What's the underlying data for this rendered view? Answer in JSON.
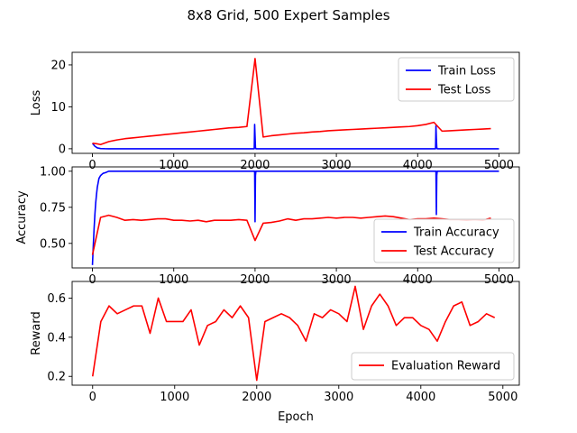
{
  "figure": {
    "title": "8x8 Grid, 500 Expert Samples"
  },
  "chart_data": [
    {
      "type": "line",
      "ylabel": "Loss",
      "xlabel": "",
      "xlim": [
        -250,
        5250
      ],
      "ylim": [
        -1.1,
        23
      ],
      "xticks": [
        0,
        1000,
        2000,
        3000,
        4000,
        5000
      ],
      "yticks": [
        0,
        10,
        20
      ],
      "legend_position": "top-right",
      "series": [
        {
          "name": "Train Loss",
          "color": "#0000ff",
          "x": [
            0,
            30,
            60,
            100,
            150,
            200,
            500,
            1000,
            1500,
            1990,
            1995,
            2000,
            2005,
            2010,
            2500,
            3000,
            3500,
            4000,
            4220,
            4225,
            4230,
            4235,
            4240,
            4500,
            5000
          ],
          "y": [
            1.3,
            0.6,
            0.2,
            0.05,
            0.01,
            0.0,
            0.0,
            0.0,
            0.0,
            0.0,
            5.8,
            3.0,
            0.3,
            0.0,
            0.0,
            0.0,
            0.0,
            0.0,
            0.0,
            5.5,
            2.5,
            0.3,
            0.0,
            0.0,
            0.0
          ]
        },
        {
          "name": "Test Loss",
          "color": "#ff0000",
          "x": [
            0,
            50,
            100,
            200,
            300,
            400,
            500,
            600,
            700,
            800,
            900,
            1000,
            1100,
            1200,
            1300,
            1400,
            1500,
            1600,
            1700,
            1800,
            1900,
            2000,
            2100,
            2200,
            2300,
            2400,
            2500,
            2600,
            2700,
            2800,
            2900,
            3000,
            3100,
            3200,
            3300,
            3400,
            3500,
            3600,
            3700,
            3800,
            3900,
            4000,
            4100,
            4200,
            4300,
            4400,
            4500,
            4600,
            4700,
            4800,
            4900
          ],
          "y": [
            1.3,
            1.2,
            1.0,
            1.7,
            2.1,
            2.4,
            2.6,
            2.8,
            3.0,
            3.2,
            3.4,
            3.6,
            3.8,
            4.0,
            4.2,
            4.4,
            4.6,
            4.8,
            5.0,
            5.1,
            5.3,
            21.5,
            2.8,
            3.1,
            3.3,
            3.5,
            3.7,
            3.8,
            4.0,
            4.1,
            4.3,
            4.4,
            4.5,
            4.6,
            4.7,
            4.8,
            4.9,
            5.0,
            5.1,
            5.2,
            5.3,
            5.5,
            5.8,
            6.3,
            4.2,
            4.3,
            4.4,
            4.5,
            4.6,
            4.7,
            4.8
          ]
        }
      ]
    },
    {
      "type": "line",
      "ylabel": "Accuracy",
      "xlabel": "",
      "xlim": [
        -250,
        5250
      ],
      "ylim": [
        0.33,
        1.03
      ],
      "xticks": [
        0,
        1000,
        2000,
        3000,
        4000,
        5000
      ],
      "yticks": [
        0.5,
        0.75,
        1.0
      ],
      "ytick_labels": [
        "0.50",
        "0.75",
        "1.00"
      ],
      "legend_position": "bottom-right",
      "series": [
        {
          "name": "Train Accuracy",
          "color": "#0000ff",
          "x": [
            0,
            10,
            20,
            30,
            40,
            50,
            60,
            70,
            80,
            100,
            130,
            160,
            200,
            300,
            1000,
            1995,
            2000,
            2005,
            2010,
            3000,
            4225,
            4230,
            4235,
            4240,
            5000
          ],
          "y": [
            0.35,
            0.48,
            0.6,
            0.7,
            0.78,
            0.84,
            0.89,
            0.92,
            0.95,
            0.97,
            0.985,
            0.99,
            1.0,
            1.0,
            1.0,
            1.0,
            0.65,
            0.97,
            1.0,
            1.0,
            1.0,
            0.7,
            0.97,
            1.0,
            1.0
          ]
        },
        {
          "name": "Test Accuracy",
          "color": "#ff0000",
          "x": [
            0,
            100,
            200,
            300,
            400,
            500,
            600,
            700,
            800,
            900,
            1000,
            1100,
            1200,
            1300,
            1400,
            1500,
            1600,
            1700,
            1800,
            1900,
            2000,
            2100,
            2200,
            2300,
            2400,
            2500,
            2600,
            2700,
            2800,
            2900,
            3000,
            3100,
            3200,
            3300,
            3400,
            3500,
            3600,
            3700,
            3800,
            3900,
            4000,
            4100,
            4200,
            4300,
            4400,
            4500,
            4600,
            4700,
            4800,
            4900
          ],
          "y": [
            0.42,
            0.68,
            0.695,
            0.68,
            0.66,
            0.665,
            0.66,
            0.665,
            0.67,
            0.67,
            0.66,
            0.66,
            0.655,
            0.66,
            0.65,
            0.66,
            0.66,
            0.66,
            0.665,
            0.66,
            0.52,
            0.64,
            0.645,
            0.655,
            0.67,
            0.66,
            0.67,
            0.67,
            0.675,
            0.68,
            0.675,
            0.68,
            0.68,
            0.675,
            0.68,
            0.685,
            0.69,
            0.685,
            0.675,
            0.665,
            0.67,
            0.67,
            0.675,
            0.67,
            0.665,
            0.665,
            0.66,
            0.665,
            0.66,
            0.675
          ]
        }
      ]
    },
    {
      "type": "line",
      "ylabel": "Reward",
      "xlabel": "Epoch",
      "xlim": [
        -250,
        5200
      ],
      "ylim": [
        0.155,
        0.685
      ],
      "xticks": [
        0,
        1000,
        2000,
        3000,
        4000,
        5000
      ],
      "yticks": [
        0.2,
        0.4,
        0.6
      ],
      "legend_position": "bottom-right",
      "series": [
        {
          "name": "Evaluation Reward",
          "color": "#ff0000",
          "x": [
            0,
            100,
            200,
            300,
            400,
            500,
            600,
            700,
            800,
            900,
            1000,
            1100,
            1200,
            1300,
            1400,
            1500,
            1600,
            1700,
            1800,
            1900,
            2000,
            2100,
            2200,
            2300,
            2400,
            2500,
            2600,
            2700,
            2800,
            2900,
            3000,
            3100,
            3200,
            3300,
            3400,
            3500,
            3600,
            3700,
            3800,
            3900,
            4000,
            4100,
            4200,
            4300,
            4400,
            4500,
            4600,
            4700,
            4800,
            4900
          ],
          "y": [
            0.2,
            0.48,
            0.56,
            0.52,
            0.54,
            0.56,
            0.56,
            0.42,
            0.6,
            0.48,
            0.48,
            0.48,
            0.54,
            0.36,
            0.46,
            0.48,
            0.54,
            0.5,
            0.56,
            0.5,
            0.18,
            0.48,
            0.5,
            0.52,
            0.5,
            0.46,
            0.38,
            0.52,
            0.5,
            0.54,
            0.52,
            0.48,
            0.66,
            0.44,
            0.56,
            0.62,
            0.56,
            0.46,
            0.5,
            0.5,
            0.46,
            0.44,
            0.38,
            0.48,
            0.56,
            0.58,
            0.46,
            0.48,
            0.52,
            0.5
          ]
        }
      ]
    }
  ]
}
